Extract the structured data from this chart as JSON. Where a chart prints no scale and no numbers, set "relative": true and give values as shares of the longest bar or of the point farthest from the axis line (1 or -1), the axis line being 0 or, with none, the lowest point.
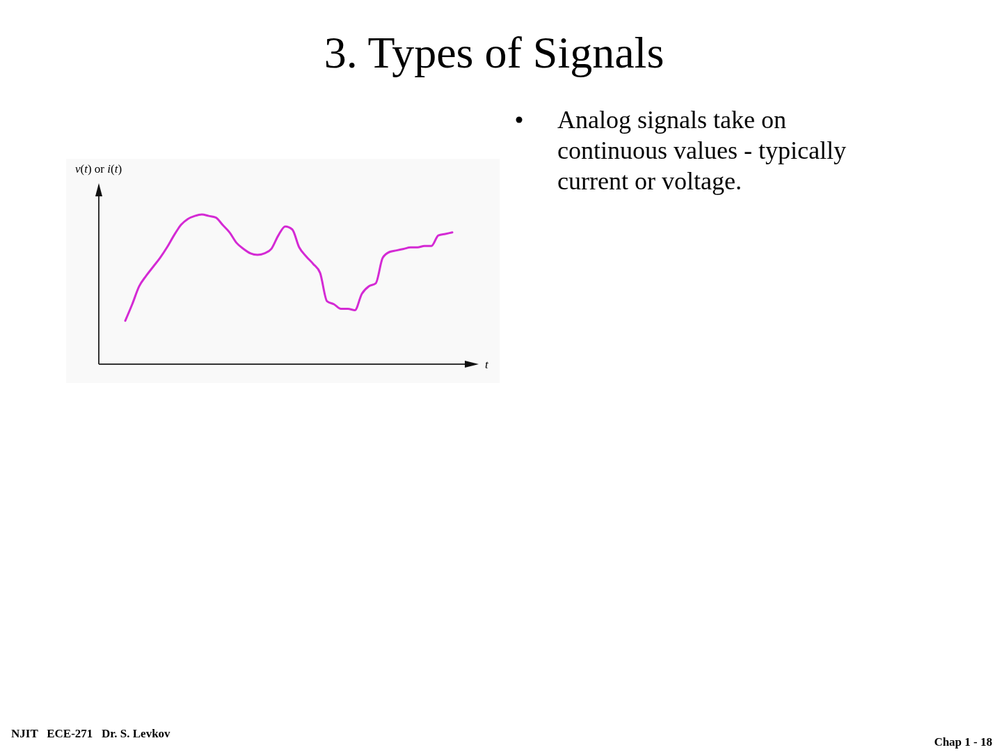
{
  "chart_data": {
    "type": "line",
    "title": "3. Types of Signals",
    "xlabel": "t",
    "ylabel": "v(t) or i(t)",
    "relative": true,
    "annotations": [
      "Analog signals take on continuous values - typically current or voltage.",
      "NJIT   ECE-271   Dr. S. Levkov",
      "Chap 1 - 18"
    ],
    "categories": [
      null,
      null,
      null,
      null,
      null,
      null,
      null,
      null,
      null,
      null,
      null,
      null,
      null,
      null,
      null,
      null,
      null,
      null,
      null,
      null,
      null,
      null,
      null,
      null,
      null,
      null,
      null,
      null,
      null,
      null,
      null,
      null,
      null,
      null,
      null,
      null,
      null,
      null,
      null,
      null,
      null,
      null,
      null,
      null,
      null,
      null,
      null,
      null
    ],
    "series": [
      {
        "color": "#d42ad4",
        "values": [
          0.29,
          0.4,
          0.52,
          0.59,
          0.65,
          0.71,
          0.78,
          0.86,
          0.93,
          0.97,
          0.99,
          1,
          0.99,
          0.98,
          0.93,
          0.88,
          0.81,
          0.77,
          0.74,
          0.73,
          0.74,
          0.77,
          0.86,
          0.92,
          0.9,
          0.78,
          0.72,
          0.67,
          0.61,
          0.42,
          0.4,
          0.37,
          0.37,
          0.36,
          0.47,
          0.52,
          0.54,
          0.71,
          0.75,
          0.76,
          0.77,
          0.78,
          0.78,
          0.79,
          0.79,
          0.86,
          0.87,
          0.88
        ]
      }
    ]
  }
}
